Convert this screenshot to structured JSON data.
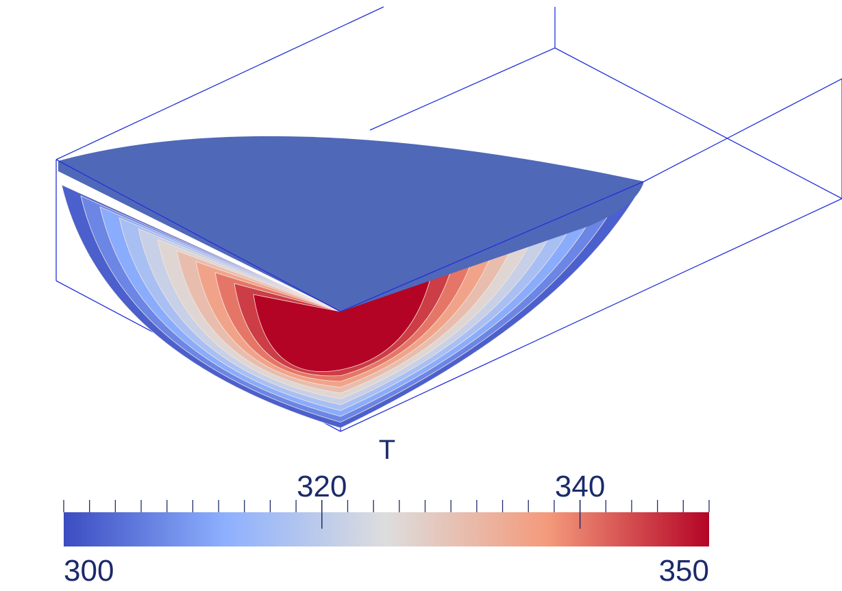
{
  "colorbar": {
    "title": "T",
    "min": 300,
    "max": 350,
    "ticks": [
      300,
      302,
      304,
      306,
      308,
      310,
      312,
      314,
      316,
      318,
      320,
      322,
      324,
      326,
      328,
      330,
      332,
      334,
      336,
      338,
      340,
      342,
      344,
      346,
      348,
      350
    ],
    "labeled_ticks": [
      320,
      340
    ],
    "colormap": [
      "#3b4cc0",
      "#8db0fe",
      "#dddddd",
      "#f49a7b",
      "#b40426"
    ]
  }
}
